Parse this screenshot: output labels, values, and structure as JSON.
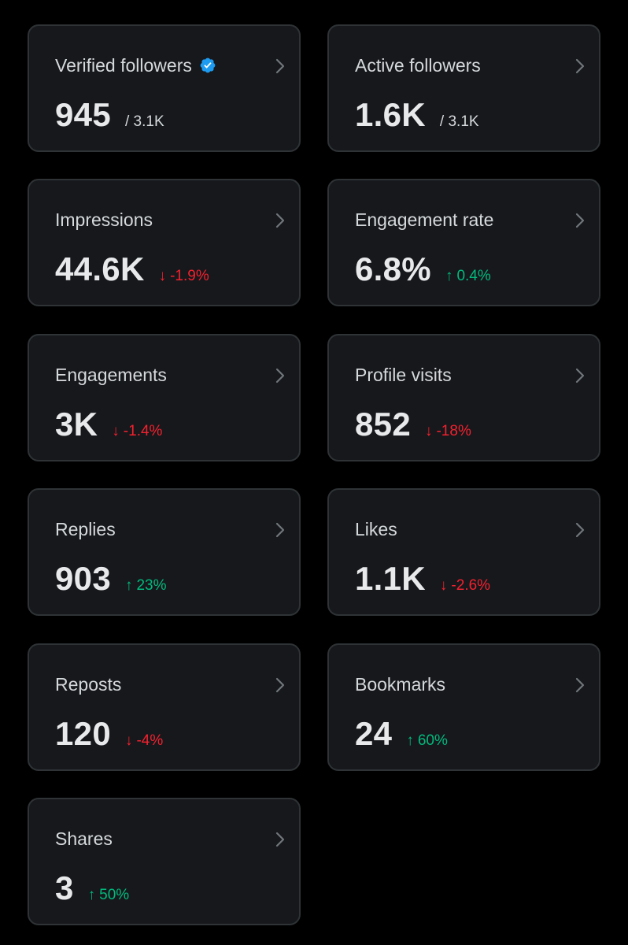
{
  "colors": {
    "background": "#000000",
    "card": "#16181c",
    "border": "#2f3336",
    "text": "#e7e9ea",
    "positive": "#00ba7c",
    "negative": "#f4212e",
    "verified": "#1d9bf0"
  },
  "cards": [
    {
      "label": "Verified followers",
      "value": "945",
      "sub": "/ 3.1K",
      "badge": "verified-icon"
    },
    {
      "label": "Active followers",
      "value": "1.6K",
      "sub": "/ 3.1K"
    },
    {
      "label": "Impressions",
      "value": "44.6K",
      "delta": "-1.9%",
      "trend": "down"
    },
    {
      "label": "Engagement rate",
      "value": "6.8%",
      "delta": "0.4%",
      "trend": "up"
    },
    {
      "label": "Engagements",
      "value": "3K",
      "delta": "-1.4%",
      "trend": "down"
    },
    {
      "label": "Profile visits",
      "value": "852",
      "delta": "-18%",
      "trend": "down"
    },
    {
      "label": "Replies",
      "value": "903",
      "delta": "23%",
      "trend": "up"
    },
    {
      "label": "Likes",
      "value": "1.1K",
      "delta": "-2.6%",
      "trend": "down"
    },
    {
      "label": "Reposts",
      "value": "120",
      "delta": "-4%",
      "trend": "down"
    },
    {
      "label": "Bookmarks",
      "value": "24",
      "delta": "60%",
      "trend": "up"
    },
    {
      "label": "Shares",
      "value": "3",
      "delta": "50%",
      "trend": "up"
    }
  ],
  "icons": {
    "chevron": "chevron-right-icon",
    "up": "arrow-up-icon",
    "down": "arrow-down-icon"
  }
}
